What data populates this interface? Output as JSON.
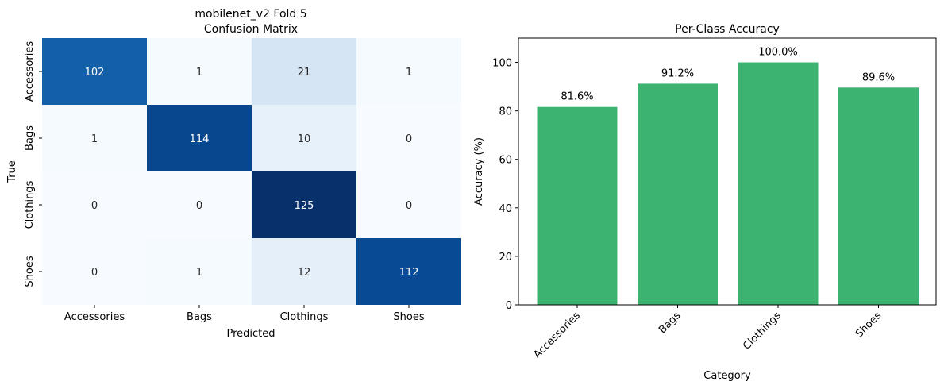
{
  "chart_data": [
    {
      "type": "heatmap",
      "title": "mobilenet_v2 Fold 5\nConfusion Matrix",
      "xlabel": "Predicted",
      "ylabel": "True",
      "x_categories": [
        "Accessories",
        "Bags",
        "Clothings",
        "Shoes"
      ],
      "y_categories": [
        "Accessories",
        "Bags",
        "Clothings",
        "Shoes"
      ],
      "values": [
        [
          102,
          1,
          21,
          1
        ],
        [
          1,
          114,
          10,
          0
        ],
        [
          0,
          0,
          125,
          0
        ],
        [
          0,
          1,
          12,
          112
        ]
      ],
      "colormap": "Blues",
      "colorbar": false
    },
    {
      "type": "bar",
      "title": "Per-Class Accuracy",
      "xlabel": "Category",
      "ylabel": "Accuracy (%)",
      "categories": [
        "Accessories",
        "Bags",
        "Clothings",
        "Shoes"
      ],
      "values": [
        81.6,
        91.2,
        100.0,
        89.6
      ],
      "data_labels": [
        "81.6%",
        "91.2%",
        "100.0%",
        "89.6%"
      ],
      "ylim": [
        0,
        110
      ],
      "yticks": [
        0,
        20,
        40,
        60,
        80,
        100
      ],
      "bar_color": "#3cb371",
      "grid": false,
      "xtick_rotation": 45
    }
  ]
}
